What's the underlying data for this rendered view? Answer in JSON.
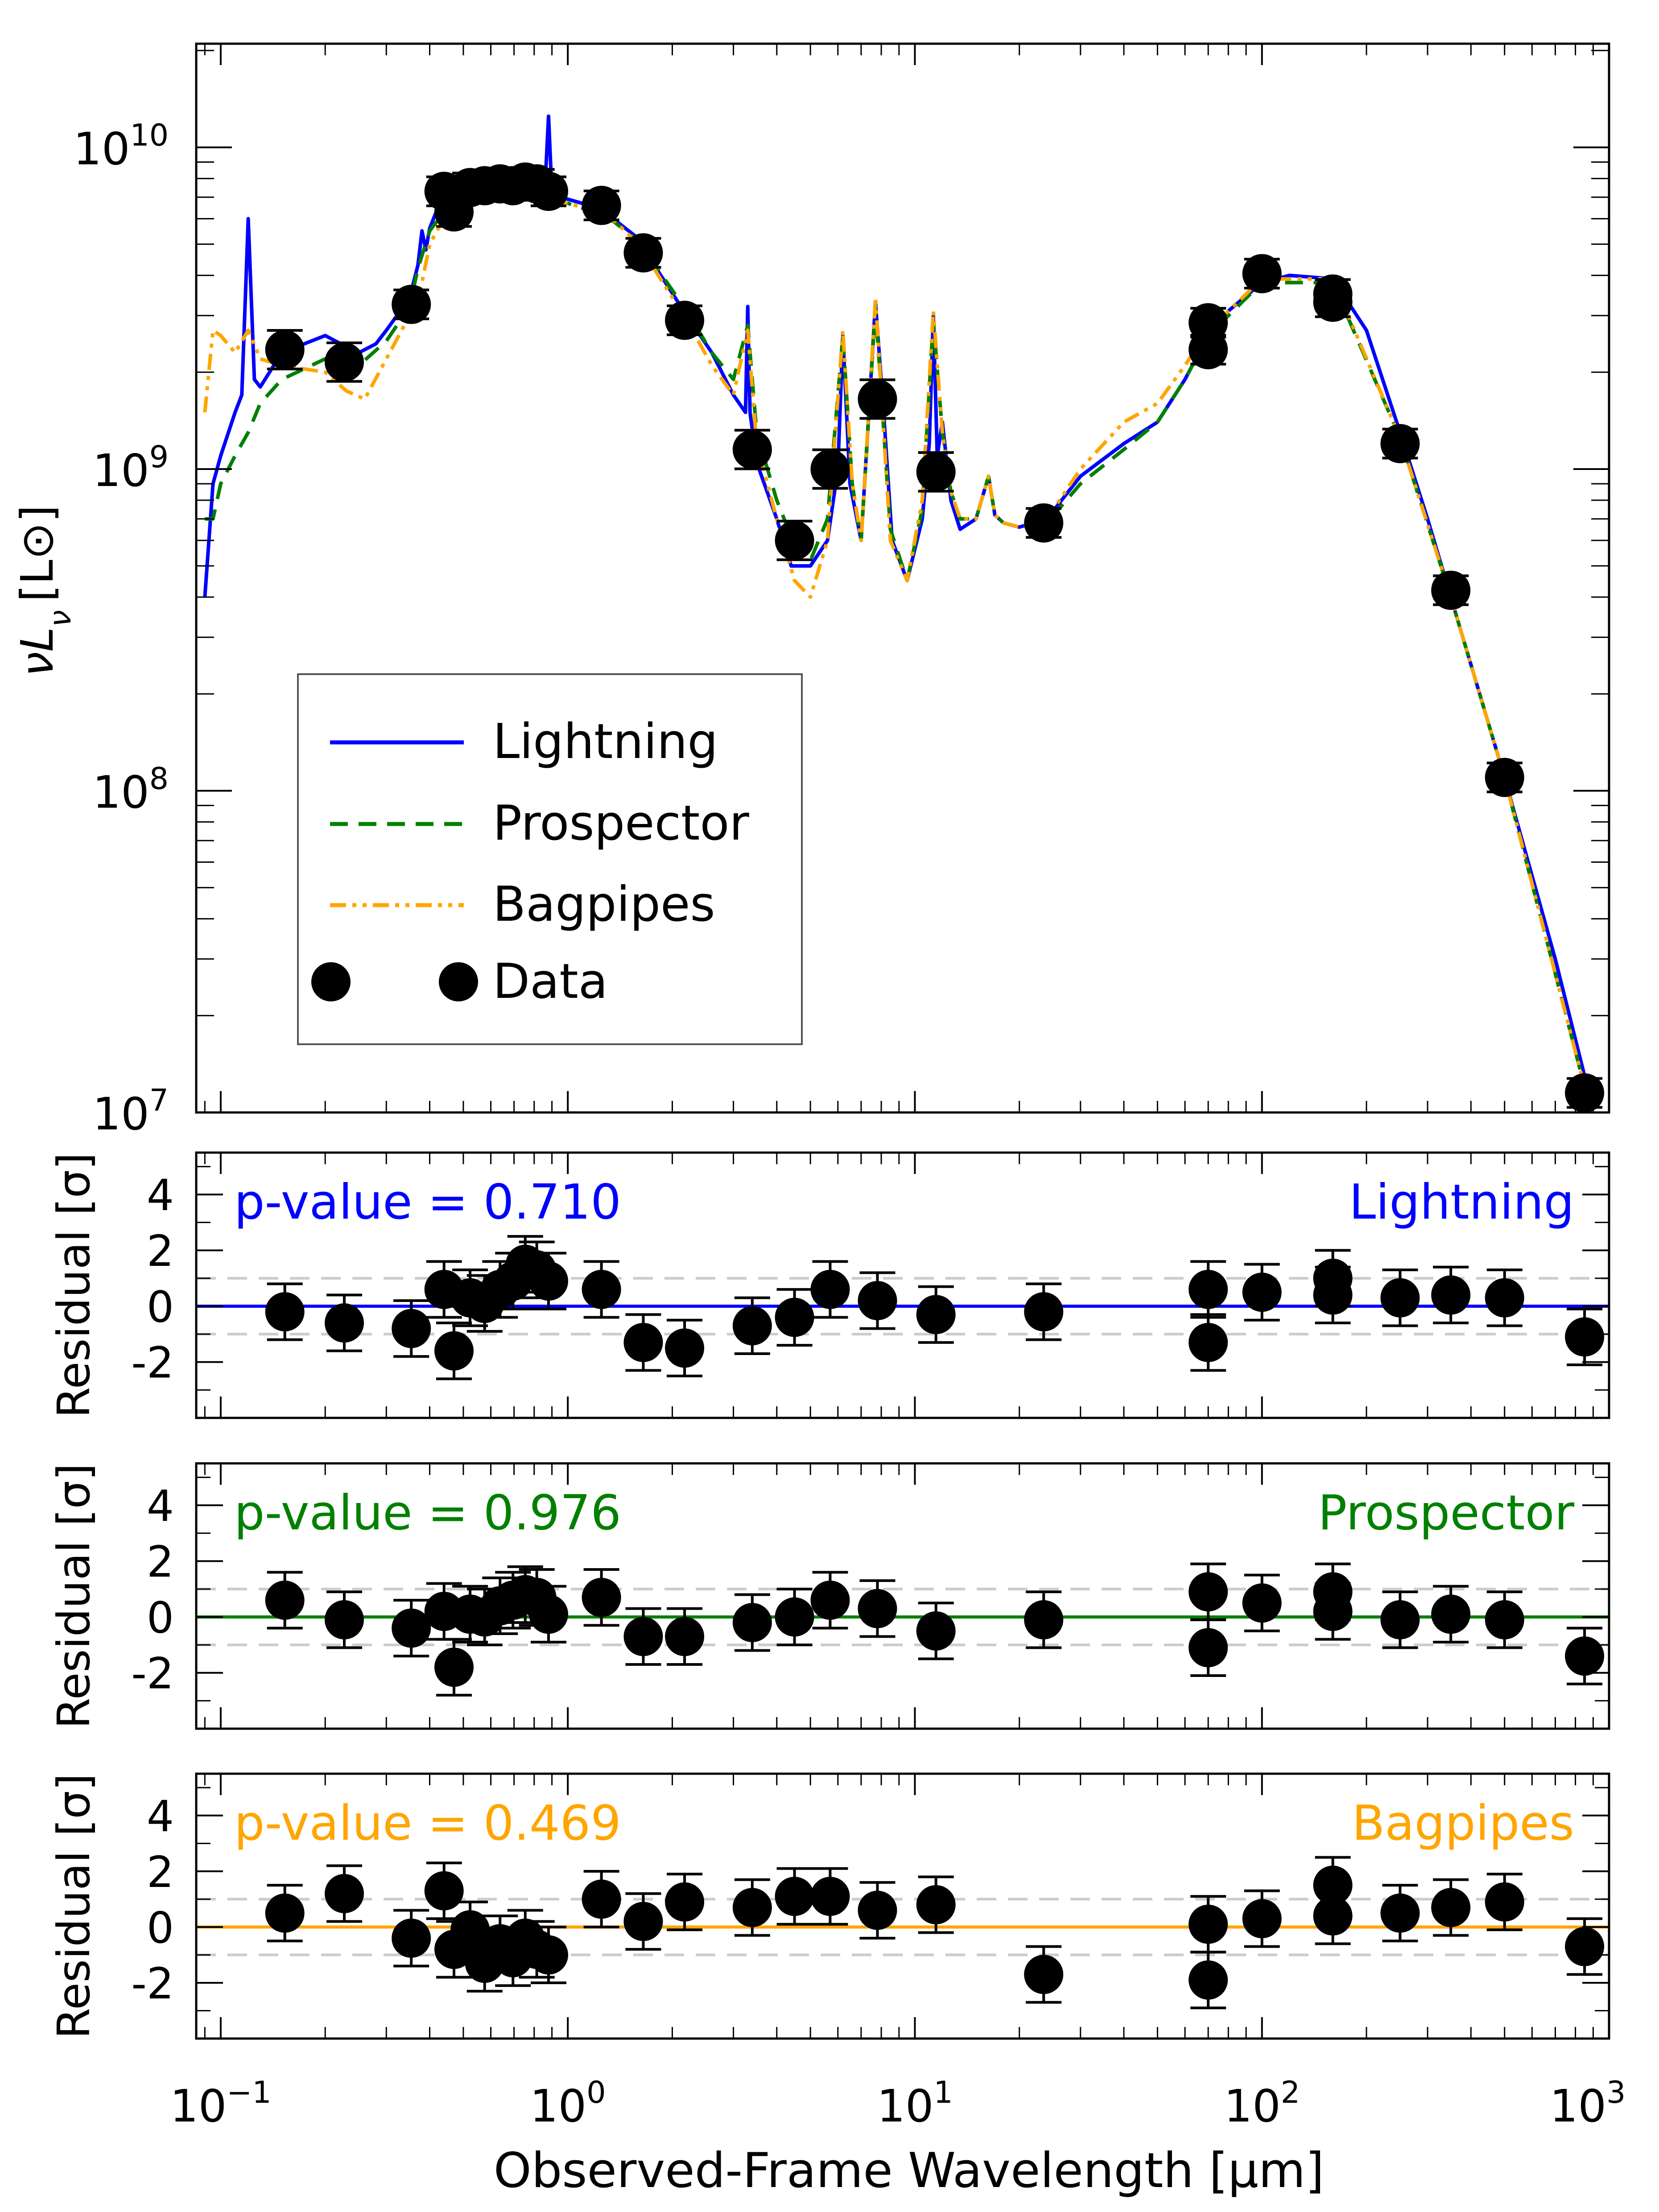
{
  "figure": {
    "xlabel": "Observed-Frame Wavelength [μm]",
    "x_tick_labels": [
      {
        "x": 0.1,
        "base": "10",
        "exp": "−1"
      },
      {
        "x": 1,
        "base": "10",
        "exp": "0"
      },
      {
        "x": 10,
        "base": "10",
        "exp": "1"
      },
      {
        "x": 100,
        "base": "10",
        "exp": "2"
      },
      {
        "x": 1000,
        "base": "10",
        "exp": "3"
      }
    ]
  },
  "chart_data": [
    {
      "type": "line",
      "panel": "sed",
      "xscale": "log",
      "yscale": "log",
      "xlim": [
        0.085,
        1000
      ],
      "ylim": [
        10000000,
        21000000000
      ],
      "ylabel_main": "νL",
      "ylabel_sub": "ν",
      "ylabel_unit": "[L⊙]",
      "y_tick_labels": [
        {
          "y": 10000000,
          "base": "10",
          "exp": "7"
        },
        {
          "y": 100000000,
          "base": "10",
          "exp": "8"
        },
        {
          "y": 1000000000,
          "base": "10",
          "exp": "9"
        },
        {
          "y": 10000000000,
          "base": "10",
          "exp": "10"
        }
      ],
      "legend": {
        "position": "lower-left",
        "entries": [
          "Lightning",
          "Prospector",
          "Bagpipes",
          "Data"
        ]
      },
      "series": [
        {
          "name": "Lightning",
          "color": "#0000ff",
          "style": "solid",
          "x": [
            0.09,
            0.095,
            0.1,
            0.11,
            0.115,
            0.12,
            0.125,
            0.13,
            0.15,
            0.2,
            0.23,
            0.25,
            0.28,
            0.3,
            0.35,
            0.37,
            0.38,
            0.39,
            0.4,
            0.42,
            0.45,
            0.5,
            0.6,
            0.7,
            0.8,
            0.86,
            0.88,
            0.9,
            0.95,
            1.0,
            1.1,
            1.3,
            1.6,
            1.8,
            2.2,
            2.6,
            3.0,
            3.25,
            3.3,
            3.35,
            3.5,
            4.0,
            4.4,
            5.0,
            5.6,
            6.0,
            6.2,
            6.5,
            7.0,
            7.7,
            8.2,
            8.6,
            9.5,
            10.5,
            11.0,
            11.3,
            11.6,
            12.0,
            12.7,
            13.5,
            15.0,
            16.3,
            17.0,
            18.0,
            20.0,
            24.0,
            30.0,
            40.0,
            50.0,
            60.0,
            70.0,
            80.0,
            100.0,
            120.0,
            160.0,
            200.0,
            250.0,
            300.0,
            350.0,
            500.0,
            700.0,
            850.0
          ],
          "y": [
            400000000,
            900000000,
            1100000000,
            1500000000,
            1700000000,
            6000000000,
            1900000000,
            1800000000,
            2300000000,
            2600000000,
            2400000000,
            2300000000,
            2450000000,
            2700000000,
            3400000000,
            4300000000,
            5500000000,
            4800000000,
            5600000000,
            6400000000,
            6700000000,
            7000000000,
            7100000000,
            7000000000,
            7100000000,
            7600000000,
            12500000000,
            7200000000,
            7000000000,
            6900000000,
            6700000000,
            6200000000,
            5200000000,
            4200000000,
            3000000000,
            2300000000,
            1700000000,
            1500000000,
            3200000000,
            1500000000,
            1050000000,
            700000000,
            500000000,
            500000000,
            600000000,
            1000000000,
            2600000000,
            900000000,
            600000000,
            3300000000,
            1300000000,
            600000000,
            450000000,
            700000000,
            1200000000,
            3000000000,
            1100000000,
            1400000000,
            800000000,
            650000000,
            700000000,
            950000000,
            720000000,
            680000000,
            660000000,
            700000000,
            950000000,
            1200000000,
            1400000000,
            1900000000,
            2600000000,
            3100000000,
            3800000000,
            4000000000,
            3900000000,
            2700000000,
            1300000000,
            700000000,
            400000000,
            110000000,
            30000000,
            13000000
          ]
        },
        {
          "name": "Prospector",
          "color": "#008000",
          "style": "dashed",
          "x": [
            0.09,
            0.095,
            0.1,
            0.11,
            0.12,
            0.13,
            0.15,
            0.2,
            0.25,
            0.3,
            0.35,
            0.37,
            0.4,
            0.45,
            0.5,
            0.6,
            0.7,
            0.8,
            0.9,
            1.0,
            1.3,
            1.6,
            2.2,
            2.6,
            3.0,
            3.3,
            3.5,
            4.0,
            4.5,
            5.0,
            5.6,
            6.2,
            6.6,
            7.0,
            7.7,
            8.5,
            9.5,
            10.5,
            11.3,
            12.0,
            12.7,
            13.5,
            15.0,
            16.3,
            17.0,
            18.0,
            20.0,
            24.0,
            30.0,
            40.0,
            50.0,
            60.0,
            70.0,
            100.0,
            160.0,
            250.0,
            350.0,
            500.0,
            850.0
          ],
          "y": [
            700000000,
            700000000,
            900000000,
            1100000000,
            1300000000,
            1600000000,
            1900000000,
            2200000000,
            2100000000,
            2500000000,
            3200000000,
            4200000000,
            5500000000,
            6500000000,
            6800000000,
            7000000000,
            6900000000,
            6900000000,
            6800000000,
            6700000000,
            6100000000,
            5100000000,
            3100000000,
            2300000000,
            1900000000,
            2800000000,
            1300000000,
            800000000,
            580000000,
            520000000,
            700000000,
            2600000000,
            900000000,
            600000000,
            3200000000,
            650000000,
            450000000,
            750000000,
            2900000000,
            1300000000,
            850000000,
            700000000,
            700000000,
            950000000,
            720000000,
            680000000,
            660000000,
            680000000,
            900000000,
            1150000000,
            1400000000,
            1900000000,
            2600000000,
            3800000000,
            3800000000,
            1250000000,
            400000000,
            110000000,
            12000000
          ]
        },
        {
          "name": "Bagpipes",
          "color": "#ffa500",
          "style": "dashdotdot",
          "x": [
            0.09,
            0.095,
            0.1,
            0.11,
            0.12,
            0.13,
            0.15,
            0.2,
            0.23,
            0.26,
            0.3,
            0.35,
            0.38,
            0.4,
            0.45,
            0.5,
            0.6,
            0.7,
            0.8,
            0.9,
            1.0,
            1.3,
            1.6,
            2.2,
            2.6,
            3.0,
            3.3,
            3.5,
            4.0,
            4.5,
            5.0,
            5.6,
            6.2,
            6.6,
            7.0,
            7.7,
            8.5,
            9.5,
            10.5,
            11.3,
            12.0,
            12.7,
            13.5,
            15.0,
            16.3,
            17.0,
            18.0,
            20.0,
            24.0,
            30.0,
            40.0,
            50.0,
            60.0,
            70.0,
            100.0,
            160.0,
            250.0,
            350.0,
            500.0,
            850.0
          ],
          "y": [
            1500000000,
            2700000000,
            2600000000,
            2300000000,
            2700000000,
            2200000000,
            2100000000,
            2000000000,
            1750000000,
            1650000000,
            2200000000,
            3000000000,
            3800000000,
            5000000000,
            6300000000,
            6700000000,
            7000000000,
            7000000000,
            6900000000,
            6800000000,
            6700000000,
            6200000000,
            5000000000,
            2900000000,
            2100000000,
            1700000000,
            2700000000,
            1200000000,
            700000000,
            450000000,
            400000000,
            600000000,
            2700000000,
            900000000,
            600000000,
            3400000000,
            600000000,
            450000000,
            800000000,
            3100000000,
            1300000000,
            850000000,
            700000000,
            700000000,
            950000000,
            720000000,
            680000000,
            660000000,
            700000000,
            1000000000,
            1400000000,
            1600000000,
            2100000000,
            2700000000,
            3900000000,
            3900000000,
            1250000000,
            400000000,
            110000000,
            12000000
          ]
        }
      ],
      "data_points": {
        "name": "Data",
        "color": "#000000",
        "x": [
          0.153,
          0.227,
          0.354,
          0.44,
          0.47,
          0.523,
          0.576,
          0.638,
          0.695,
          0.754,
          0.814,
          0.88,
          1.25,
          1.65,
          2.17,
          3.4,
          4.5,
          5.7,
          7.8,
          11.5,
          23.5,
          70.0,
          70.0,
          100.0,
          160.0,
          160.0,
          250.0,
          350.0,
          500.0,
          850.0
        ],
        "y": [
          2350000000,
          2150000000,
          3250000000,
          7300000000,
          6300000000,
          7500000000,
          7600000000,
          7700000000,
          7600000000,
          7800000000,
          7700000000,
          7300000000,
          6600000000,
          4700000000,
          2900000000,
          1150000000,
          600000000,
          1000000000,
          1650000000,
          980000000,
          680000000,
          2850000000,
          2350000000,
          4050000000,
          3300000000,
          3500000000,
          1200000000,
          420000000,
          110000000,
          11500000
        ],
        "err_dex": [
          0.06,
          0.06,
          0.045,
          0.045,
          0.045,
          0.045,
          0.045,
          0.045,
          0.045,
          0.045,
          0.045,
          0.045,
          0.045,
          0.045,
          0.045,
          0.06,
          0.06,
          0.06,
          0.06,
          0.06,
          0.045,
          0.045,
          0.045,
          0.045,
          0.045,
          0.045,
          0.045,
          0.045,
          0.045,
          0.045
        ]
      }
    },
    {
      "type": "scatter",
      "panel": "residual",
      "xscale": "log",
      "xlim": [
        0.085,
        1000
      ],
      "ylim": [
        -4,
        5.5
      ],
      "ylabel": "Residual [σ]",
      "yticks": [
        -2,
        0,
        2,
        4
      ],
      "y_tick_labels": [
        "-2",
        "0",
        "2",
        "4"
      ],
      "reference_lines": [
        0,
        1,
        -1
      ],
      "color": "#0000ff",
      "p_value_text": "p-value = 0.710",
      "model_label": "Lightning",
      "x": [
        0.153,
        0.227,
        0.354,
        0.44,
        0.47,
        0.523,
        0.576,
        0.638,
        0.695,
        0.754,
        0.814,
        0.88,
        1.25,
        1.65,
        2.17,
        3.4,
        4.5,
        5.7,
        7.8,
        11.5,
        23.5,
        70.0,
        70.0,
        100.0,
        160.0,
        160.0,
        250.0,
        350.0,
        500.0,
        850.0
      ],
      "values": [
        -0.2,
        -0.6,
        -0.8,
        0.6,
        -1.6,
        0.3,
        0.1,
        0.6,
        0.9,
        1.5,
        1.3,
        0.9,
        0.6,
        -1.3,
        -1.5,
        -0.7,
        -0.4,
        0.6,
        0.2,
        -0.3,
        -0.2,
        0.6,
        -1.3,
        0.5,
        0.4,
        1.0,
        0.3,
        0.4,
        0.3,
        -1.1
      ],
      "err": [
        1,
        1,
        1,
        1,
        1,
        1,
        1,
        1,
        1,
        1,
        1,
        1,
        1,
        1,
        1,
        1,
        1,
        1,
        1,
        1,
        1,
        1,
        1,
        1,
        1,
        1,
        1,
        1,
        1,
        1
      ]
    },
    {
      "type": "scatter",
      "panel": "residual",
      "xscale": "log",
      "xlim": [
        0.085,
        1000
      ],
      "ylim": [
        -4,
        5.5
      ],
      "ylabel": "Residual [σ]",
      "yticks": [
        -2,
        0,
        2,
        4
      ],
      "y_tick_labels": [
        "-2",
        "0",
        "2",
        "4"
      ],
      "reference_lines": [
        0,
        1,
        -1
      ],
      "color": "#008000",
      "p_value_text": "p-value = 0.976",
      "model_label": "Prospector",
      "x": [
        0.153,
        0.227,
        0.354,
        0.44,
        0.47,
        0.523,
        0.576,
        0.638,
        0.695,
        0.754,
        0.814,
        0.88,
        1.25,
        1.65,
        2.17,
        3.4,
        4.5,
        5.7,
        7.8,
        11.5,
        23.5,
        70.0,
        70.0,
        100.0,
        160.0,
        160.0,
        250.0,
        350.0,
        500.0,
        850.0
      ],
      "values": [
        0.6,
        -0.1,
        -0.4,
        0.2,
        -1.8,
        0.1,
        0.0,
        0.4,
        0.6,
        0.8,
        0.7,
        0.1,
        0.7,
        -0.7,
        -0.7,
        -0.2,
        0.0,
        0.6,
        0.3,
        -0.5,
        -0.1,
        0.9,
        -1.1,
        0.5,
        0.2,
        0.9,
        -0.1,
        0.1,
        -0.1,
        -1.4
      ],
      "err": [
        1,
        1,
        1,
        1,
        1,
        1,
        1,
        1,
        1,
        1,
        1,
        1,
        1,
        1,
        1,
        1,
        1,
        1,
        1,
        1,
        1,
        1,
        1,
        1,
        1,
        1,
        1,
        1,
        1,
        1
      ]
    },
    {
      "type": "scatter",
      "panel": "residual",
      "xscale": "log",
      "xlim": [
        0.085,
        1000
      ],
      "ylim": [
        -4,
        5.5
      ],
      "ylabel": "Residual [σ]",
      "yticks": [
        -2,
        0,
        2,
        4
      ],
      "y_tick_labels": [
        "-2",
        "0",
        "2",
        "4"
      ],
      "reference_lines": [
        0,
        1,
        -1
      ],
      "color": "#ffa500",
      "p_value_text": "p-value = 0.469",
      "model_label": "Bagpipes",
      "x": [
        0.153,
        0.227,
        0.354,
        0.44,
        0.47,
        0.523,
        0.576,
        0.638,
        0.695,
        0.754,
        0.814,
        0.88,
        1.25,
        1.65,
        2.17,
        3.4,
        4.5,
        5.7,
        7.8,
        11.5,
        23.5,
        70.0,
        70.0,
        100.0,
        160.0,
        160.0,
        250.0,
        350.0,
        500.0,
        850.0
      ],
      "values": [
        0.5,
        1.2,
        -0.4,
        1.3,
        -0.8,
        -0.1,
        -1.3,
        -0.6,
        -1.1,
        -0.4,
        -0.8,
        -1.0,
        1.0,
        0.2,
        0.9,
        0.7,
        1.1,
        1.1,
        0.6,
        0.8,
        -1.7,
        0.1,
        -1.9,
        0.3,
        0.4,
        1.5,
        0.5,
        0.7,
        0.9,
        -0.7
      ],
      "err": [
        1,
        1,
        1,
        1,
        1,
        1,
        1,
        1,
        1,
        1,
        1,
        1,
        1,
        1,
        1,
        1,
        1,
        1,
        1,
        1,
        1,
        1,
        1,
        1,
        1,
        1,
        1,
        1,
        1,
        1
      ]
    }
  ]
}
